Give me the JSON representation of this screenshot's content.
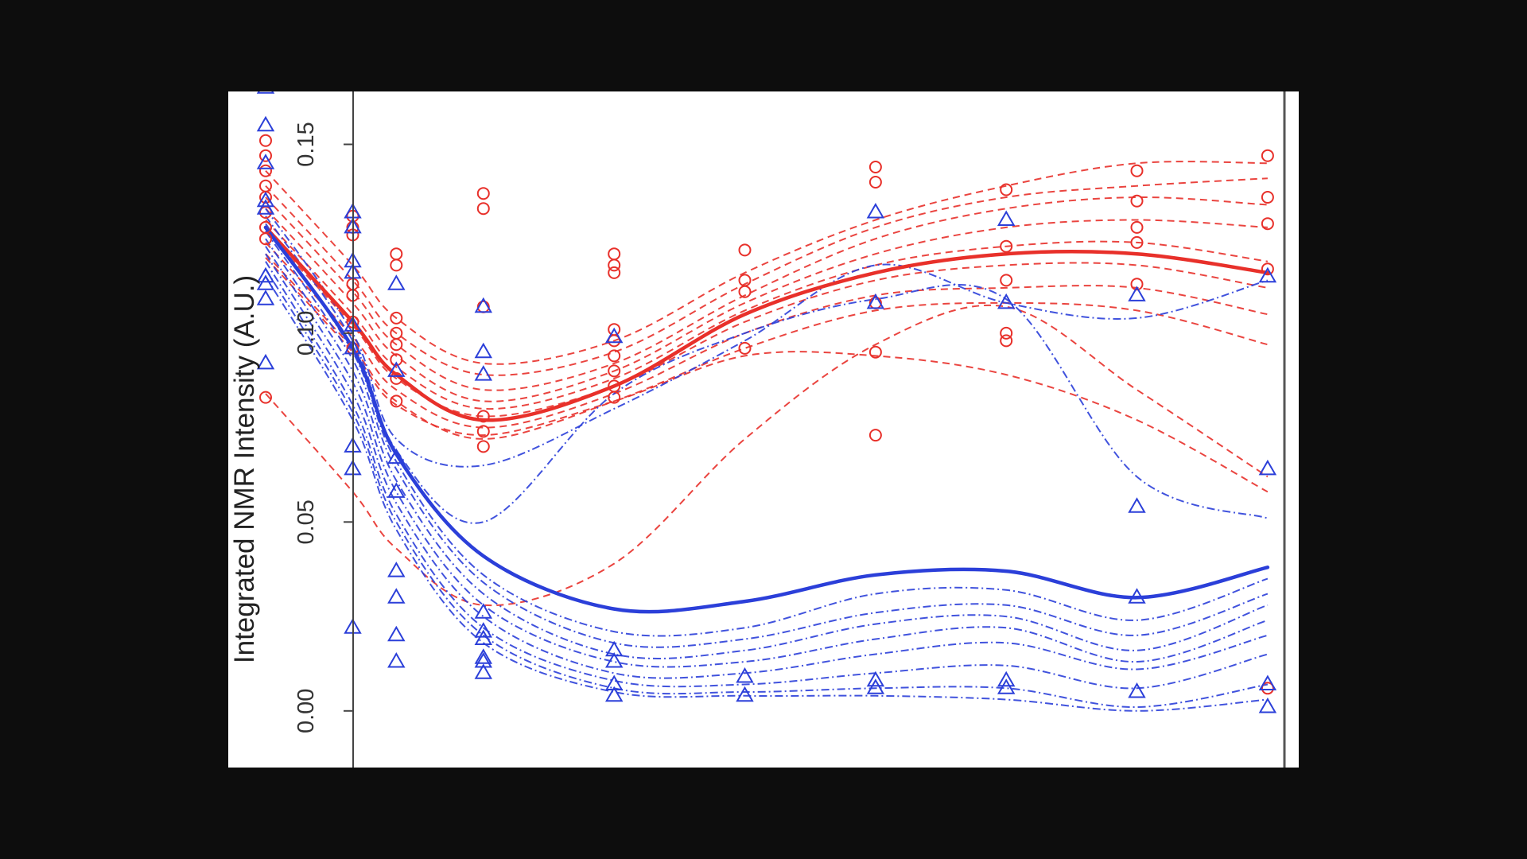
{
  "chart_data": {
    "type": "line",
    "title": "",
    "xlabel": "",
    "ylabel": "Integrated NMR Intensity (A.U.)",
    "ylim": [
      -0.015,
      0.164
    ],
    "xlim": [
      -0.3,
      8.3
    ],
    "y_ticks": [
      "0.00",
      "0.05",
      "0.10",
      "0.15"
    ],
    "y_tick_values": [
      0.0,
      0.05,
      0.1,
      0.15
    ],
    "grid": false,
    "legend": "none",
    "x": [
      0,
      0.7,
      1.05,
      1.75,
      2.8,
      3.85,
      4.9,
      5.95,
      7.0,
      8.05
    ],
    "groups": [
      {
        "color": "#e8302a",
        "marker": "circle",
        "mean_curve": [
          0.128,
          0.103,
          0.089,
          0.077,
          0.086,
          0.105,
          0.116,
          0.121,
          0.121,
          0.116
        ],
        "individual_curves": [
          [
            0.143,
            0.118,
            0.104,
            0.092,
            0.098,
            0.116,
            0.13,
            0.139,
            0.145,
            0.145
          ],
          [
            0.139,
            0.114,
            0.1,
            0.089,
            0.095,
            0.113,
            0.128,
            0.136,
            0.139,
            0.141
          ],
          [
            0.136,
            0.111,
            0.097,
            0.085,
            0.092,
            0.11,
            0.125,
            0.133,
            0.136,
            0.134
          ],
          [
            0.133,
            0.108,
            0.094,
            0.082,
            0.09,
            0.108,
            0.121,
            0.128,
            0.13,
            0.128
          ],
          [
            0.13,
            0.105,
            0.091,
            0.08,
            0.088,
            0.106,
            0.118,
            0.123,
            0.124,
            0.119
          ],
          [
            0.127,
            0.102,
            0.088,
            0.078,
            0.086,
            0.103,
            0.114,
            0.118,
            0.118,
            0.112
          ],
          [
            0.124,
            0.099,
            0.085,
            0.075,
            0.084,
            0.1,
            0.11,
            0.112,
            0.112,
            0.105
          ],
          [
            0.121,
            0.096,
            0.082,
            0.072,
            0.082,
            0.096,
            0.106,
            0.108,
            0.106,
            0.097
          ],
          [
            0.12,
            0.095,
            0.081,
            0.073,
            0.082,
            0.094,
            0.094,
            0.089,
            0.077,
            0.058
          ],
          [
            0.084,
            0.058,
            0.043,
            0.028,
            0.039,
            0.072,
            0.097,
            0.107,
            0.085,
            0.062
          ]
        ],
        "points": [
          [
            0,
            0.083
          ],
          [
            0,
            0.125
          ],
          [
            0,
            0.128
          ],
          [
            0,
            0.132
          ],
          [
            0,
            0.136
          ],
          [
            0,
            0.139
          ],
          [
            0,
            0.143
          ],
          [
            0,
            0.147
          ],
          [
            0,
            0.151
          ],
          [
            0.7,
            0.096
          ],
          [
            0.7,
            0.103
          ],
          [
            0.7,
            0.11
          ],
          [
            0.7,
            0.113
          ],
          [
            0.7,
            0.126
          ],
          [
            0.7,
            0.128
          ],
          [
            0.7,
            0.131
          ],
          [
            1.05,
            0.082
          ],
          [
            1.05,
            0.088
          ],
          [
            1.05,
            0.093
          ],
          [
            1.05,
            0.097
          ],
          [
            1.05,
            0.1
          ],
          [
            1.05,
            0.104
          ],
          [
            1.05,
            0.118
          ],
          [
            1.05,
            0.121
          ],
          [
            1.75,
            0.07
          ],
          [
            1.75,
            0.074
          ],
          [
            1.75,
            0.078
          ],
          [
            1.75,
            0.107
          ],
          [
            1.75,
            0.133
          ],
          [
            1.75,
            0.137
          ],
          [
            2.8,
            0.083
          ],
          [
            2.8,
            0.086
          ],
          [
            2.8,
            0.09
          ],
          [
            2.8,
            0.094
          ],
          [
            2.8,
            0.098
          ],
          [
            2.8,
            0.101
          ],
          [
            2.8,
            0.116
          ],
          [
            2.8,
            0.118
          ],
          [
            2.8,
            0.121
          ],
          [
            3.85,
            0.096
          ],
          [
            3.85,
            0.111
          ],
          [
            3.85,
            0.114
          ],
          [
            3.85,
            0.122
          ],
          [
            4.9,
            0.073
          ],
          [
            4.9,
            0.095
          ],
          [
            4.9,
            0.108
          ],
          [
            4.9,
            0.14
          ],
          [
            4.9,
            0.144
          ],
          [
            5.95,
            0.098
          ],
          [
            5.95,
            0.1
          ],
          [
            5.95,
            0.114
          ],
          [
            5.95,
            0.123
          ],
          [
            5.95,
            0.138
          ],
          [
            7.0,
            0.113
          ],
          [
            7.0,
            0.124
          ],
          [
            7.0,
            0.128
          ],
          [
            7.0,
            0.135
          ],
          [
            7.0,
            0.143
          ],
          [
            8.05,
            0.006
          ],
          [
            8.05,
            0.117
          ],
          [
            8.05,
            0.129
          ],
          [
            8.05,
            0.136
          ],
          [
            8.05,
            0.147
          ]
        ]
      },
      {
        "color": "#2b3fd9",
        "marker": "triangle",
        "mean_curve": [
          0.128,
          0.096,
          0.068,
          0.041,
          0.027,
          0.029,
          0.036,
          0.037,
          0.03,
          0.038
        ],
        "individual_curves": [
          [
            0.133,
            0.1,
            0.072,
            0.065,
            0.08,
            0.098,
            0.118,
            0.108,
            0.104,
            0.114
          ],
          [
            0.131,
            0.098,
            0.069,
            0.05,
            0.084,
            0.1,
            0.109,
            0.109,
            0.062,
            0.051
          ],
          [
            0.129,
            0.095,
            0.066,
            0.036,
            0.021,
            0.022,
            0.031,
            0.032,
            0.024,
            0.035
          ],
          [
            0.127,
            0.093,
            0.064,
            0.034,
            0.018,
            0.019,
            0.026,
            0.028,
            0.02,
            0.031
          ],
          [
            0.125,
            0.09,
            0.061,
            0.031,
            0.015,
            0.016,
            0.023,
            0.025,
            0.016,
            0.028
          ],
          [
            0.123,
            0.087,
            0.058,
            0.028,
            0.013,
            0.013,
            0.019,
            0.022,
            0.013,
            0.024
          ],
          [
            0.121,
            0.084,
            0.055,
            0.025,
            0.01,
            0.01,
            0.015,
            0.018,
            0.011,
            0.02
          ],
          [
            0.119,
            0.081,
            0.052,
            0.022,
            0.008,
            0.007,
            0.01,
            0.012,
            0.006,
            0.015
          ],
          [
            0.117,
            0.079,
            0.05,
            0.02,
            0.006,
            0.005,
            0.006,
            0.006,
            0.001,
            0.007
          ],
          [
            0.115,
            0.077,
            0.048,
            0.018,
            0.005,
            0.004,
            0.004,
            0.003,
            0.0,
            0.003
          ]
        ],
        "points": [
          [
            0,
            0.092
          ],
          [
            0,
            0.109
          ],
          [
            0,
            0.113
          ],
          [
            0,
            0.115
          ],
          [
            0,
            0.133
          ],
          [
            0,
            0.135
          ],
          [
            0,
            0.145
          ],
          [
            0,
            0.155
          ],
          [
            0,
            0.165
          ],
          [
            0.7,
            0.022
          ],
          [
            0.7,
            0.064
          ],
          [
            0.7,
            0.07
          ],
          [
            0.7,
            0.096
          ],
          [
            0.7,
            0.102
          ],
          [
            0.7,
            0.116
          ],
          [
            0.7,
            0.119
          ],
          [
            0.7,
            0.128
          ],
          [
            0.7,
            0.132
          ],
          [
            1.05,
            0.013
          ],
          [
            1.05,
            0.02
          ],
          [
            1.05,
            0.03
          ],
          [
            1.05,
            0.037
          ],
          [
            1.05,
            0.058
          ],
          [
            1.05,
            0.067
          ],
          [
            1.05,
            0.09
          ],
          [
            1.05,
            0.113
          ],
          [
            1.75,
            0.01
          ],
          [
            1.75,
            0.013
          ],
          [
            1.75,
            0.014
          ],
          [
            1.75,
            0.019
          ],
          [
            1.75,
            0.021
          ],
          [
            1.75,
            0.026
          ],
          [
            1.75,
            0.089
          ],
          [
            1.75,
            0.095
          ],
          [
            1.75,
            0.107
          ],
          [
            2.8,
            0.004
          ],
          [
            2.8,
            0.007
          ],
          [
            2.8,
            0.013
          ],
          [
            2.8,
            0.016
          ],
          [
            2.8,
            0.099
          ],
          [
            3.85,
            0.004
          ],
          [
            3.85,
            0.009
          ],
          [
            4.9,
            0.006
          ],
          [
            4.9,
            0.008
          ],
          [
            4.9,
            0.108
          ],
          [
            4.9,
            0.132
          ],
          [
            5.95,
            0.006
          ],
          [
            5.95,
            0.008
          ],
          [
            5.95,
            0.108
          ],
          [
            5.95,
            0.13
          ],
          [
            7.0,
            0.005
          ],
          [
            7.0,
            0.03
          ],
          [
            7.0,
            0.054
          ],
          [
            7.0,
            0.11
          ],
          [
            8.05,
            0.001
          ],
          [
            8.05,
            0.007
          ],
          [
            8.05,
            0.064
          ],
          [
            8.05,
            0.115
          ]
        ]
      }
    ]
  }
}
